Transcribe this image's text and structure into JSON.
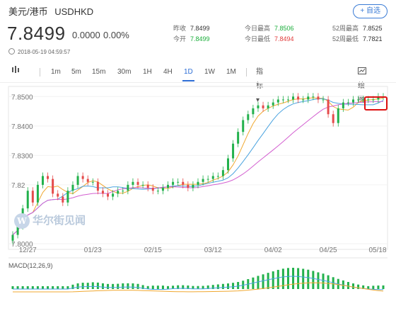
{
  "header": {
    "name_cn": "美元/港币",
    "symbol": "USDHKD",
    "add_label": "+ 自选"
  },
  "quote": {
    "price": "7.8499",
    "change": "0.0000",
    "change_pct": "0.00%",
    "timestamp": "2018-05-19 04:59:57"
  },
  "stats": {
    "col1": [
      {
        "label": "昨收",
        "value": "7.8499"
      },
      {
        "label": "今开",
        "value": "7.8499"
      }
    ],
    "col2": [
      {
        "label": "今日最高",
        "value": "7.8506"
      },
      {
        "label": "今日最低",
        "value": "7.8494"
      }
    ],
    "col3": [
      {
        "label": "52周最高",
        "value": "7.8525"
      },
      {
        "label": "52周最低",
        "value": "7.7821"
      }
    ]
  },
  "toolbar": {
    "intervals": [
      "1m",
      "5m",
      "15m",
      "30m",
      "1H",
      "4H",
      "1D",
      "1W",
      "1M"
    ],
    "active": "1D",
    "indicator": "指标 ▾",
    "draw": "绘图"
  },
  "chart_data": {
    "type": "line",
    "title": "",
    "y_ticks": [
      "7.8500",
      "7.8400",
      "7.8300",
      "7.82",
      "7.8000"
    ],
    "x_ticks": [
      "12/27",
      "01/23",
      "02/15",
      "03/12",
      "04/02",
      "04/25",
      "05/18"
    ],
    "ylim": [
      7.8,
      7.852
    ],
    "close": [
      7.803,
      7.806,
      7.812,
      7.818,
      7.814,
      7.82,
      7.823,
      7.822,
      7.817,
      7.816,
      7.814,
      7.818,
      7.82,
      7.823,
      7.822,
      7.821,
      7.821,
      7.818,
      7.817,
      7.816,
      7.817,
      7.818,
      7.818,
      7.82,
      7.821,
      7.82,
      7.82,
      7.819,
      7.818,
      7.818,
      7.819,
      7.82,
      7.821,
      7.821,
      7.82,
      7.819,
      7.82,
      7.821,
      7.822,
      7.822,
      7.823,
      7.823,
      7.825,
      7.829,
      7.834,
      7.838,
      7.842,
      7.844,
      7.846,
      7.847,
      7.846,
      7.847,
      7.848,
      7.849,
      7.849,
      7.849,
      7.85,
      7.849,
      7.849,
      7.85,
      7.85,
      7.849,
      7.849,
      7.844,
      7.841,
      7.846,
      7.848,
      7.848,
      7.849,
      7.849,
      7.849,
      7.849,
      7.849,
      7.85,
      7.85
    ],
    "macd_label": "MACD(12,26,9)"
  },
  "watermark": "华尔街见闻"
}
